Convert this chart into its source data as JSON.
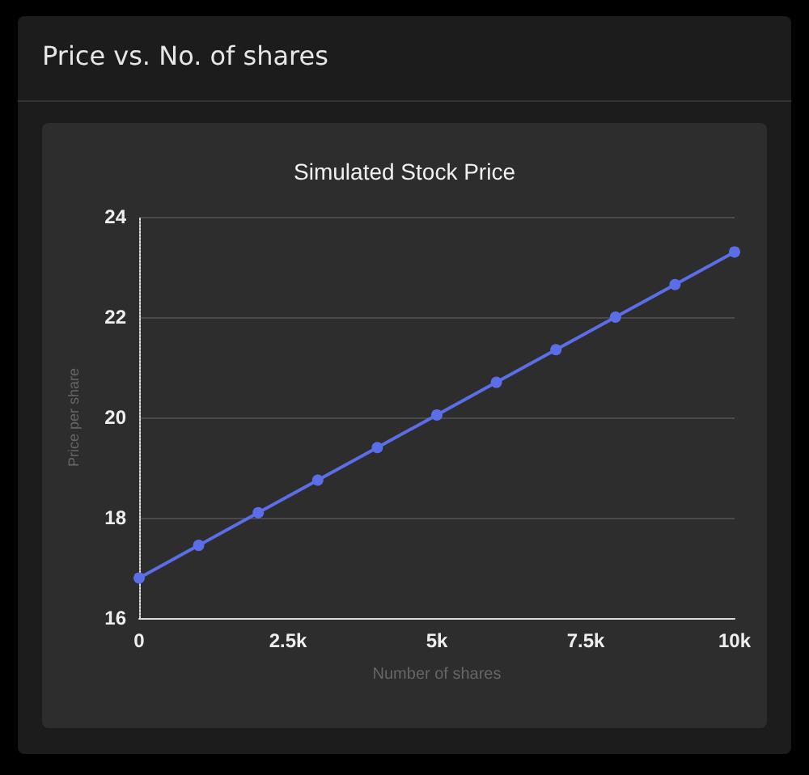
{
  "chart_data": {
    "type": "line",
    "title": "Price vs. No. of shares",
    "subtitle": "Simulated Stock Price",
    "xlabel": "Number of shares",
    "ylabel": "Price per share",
    "x": [
      0,
      1000,
      2000,
      3000,
      4000,
      5000,
      6000,
      7000,
      8000,
      9000,
      10000
    ],
    "series": [
      {
        "color": "#5b6ee8",
        "values": [
          16.8,
          17.45,
          18.1,
          18.75,
          19.4,
          20.05,
          20.7,
          21.35,
          22.0,
          22.65,
          23.3
        ]
      }
    ],
    "xlim": [
      0,
      10000
    ],
    "xticks": [
      0,
      {
        "value": 2500,
        "label": "2.5k"
      },
      {
        "value": 5000,
        "label": "5k"
      },
      {
        "value": 7500,
        "label": "7.5k"
      },
      {
        "value": 10000,
        "label": "10k"
      }
    ],
    "ylim": [
      16,
      24
    ],
    "yticks": [
      16,
      18,
      20,
      22,
      24
    ],
    "grid": "y",
    "marker": "circle",
    "line_style": "solid"
  }
}
